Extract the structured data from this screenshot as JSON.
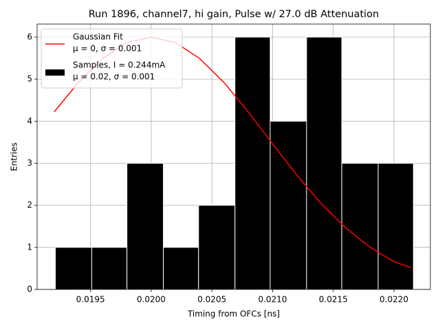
{
  "chart_data": {
    "type": "histogram",
    "title": "Run 1896, channel7, hi gain, Pulse w/ 27.0 dB Attenuation",
    "xlabel": "Timing from OFCs [ns]",
    "ylabel": "Entries",
    "bins": [
      0.01921,
      0.01951,
      0.0198,
      0.0201,
      0.02039,
      0.02069,
      0.02098,
      0.02128,
      0.02157,
      0.02187,
      0.02216
    ],
    "counts": [
      1,
      1,
      3,
      1,
      2,
      6,
      4,
      6,
      3,
      3
    ],
    "hist_name": [
      "Samples, I = 0.244mA",
      "μ = 0.02, σ = 0.001"
    ],
    "hist_color": "#000000",
    "fit": {
      "type": "line",
      "name": [
        "Gaussian Fit",
        "μ = 0, σ = 0.001"
      ],
      "color": "#ff0000",
      "x": [
        0.0192,
        0.0194,
        0.0196,
        0.0198,
        0.02,
        0.0202,
        0.0204,
        0.0206,
        0.0208,
        0.021,
        0.0212,
        0.0214,
        0.0216,
        0.0218,
        0.022,
        0.02214
      ],
      "values": [
        4.22,
        4.92,
        5.49,
        5.87,
        6,
        5.87,
        5.49,
        4.92,
        4.22,
        3.46,
        2.72,
        2.04,
        1.47,
        1.01,
        0.66,
        0.52
      ]
    },
    "xlim": [
      0.01906,
      0.0223
    ],
    "ylim": [
      0,
      6.31
    ],
    "xticks": [
      0.0195,
      {
        "value": 0.02,
        "label": "0.0200"
      },
      0.0205,
      {
        "value": 0.021,
        "label": "0.0210"
      },
      0.0215,
      {
        "value": 0.022,
        "label": "0.0220"
      }
    ],
    "yticks": [
      0,
      1,
      2,
      3,
      4,
      5,
      6
    ],
    "grid": true,
    "legend": "upper left"
  }
}
